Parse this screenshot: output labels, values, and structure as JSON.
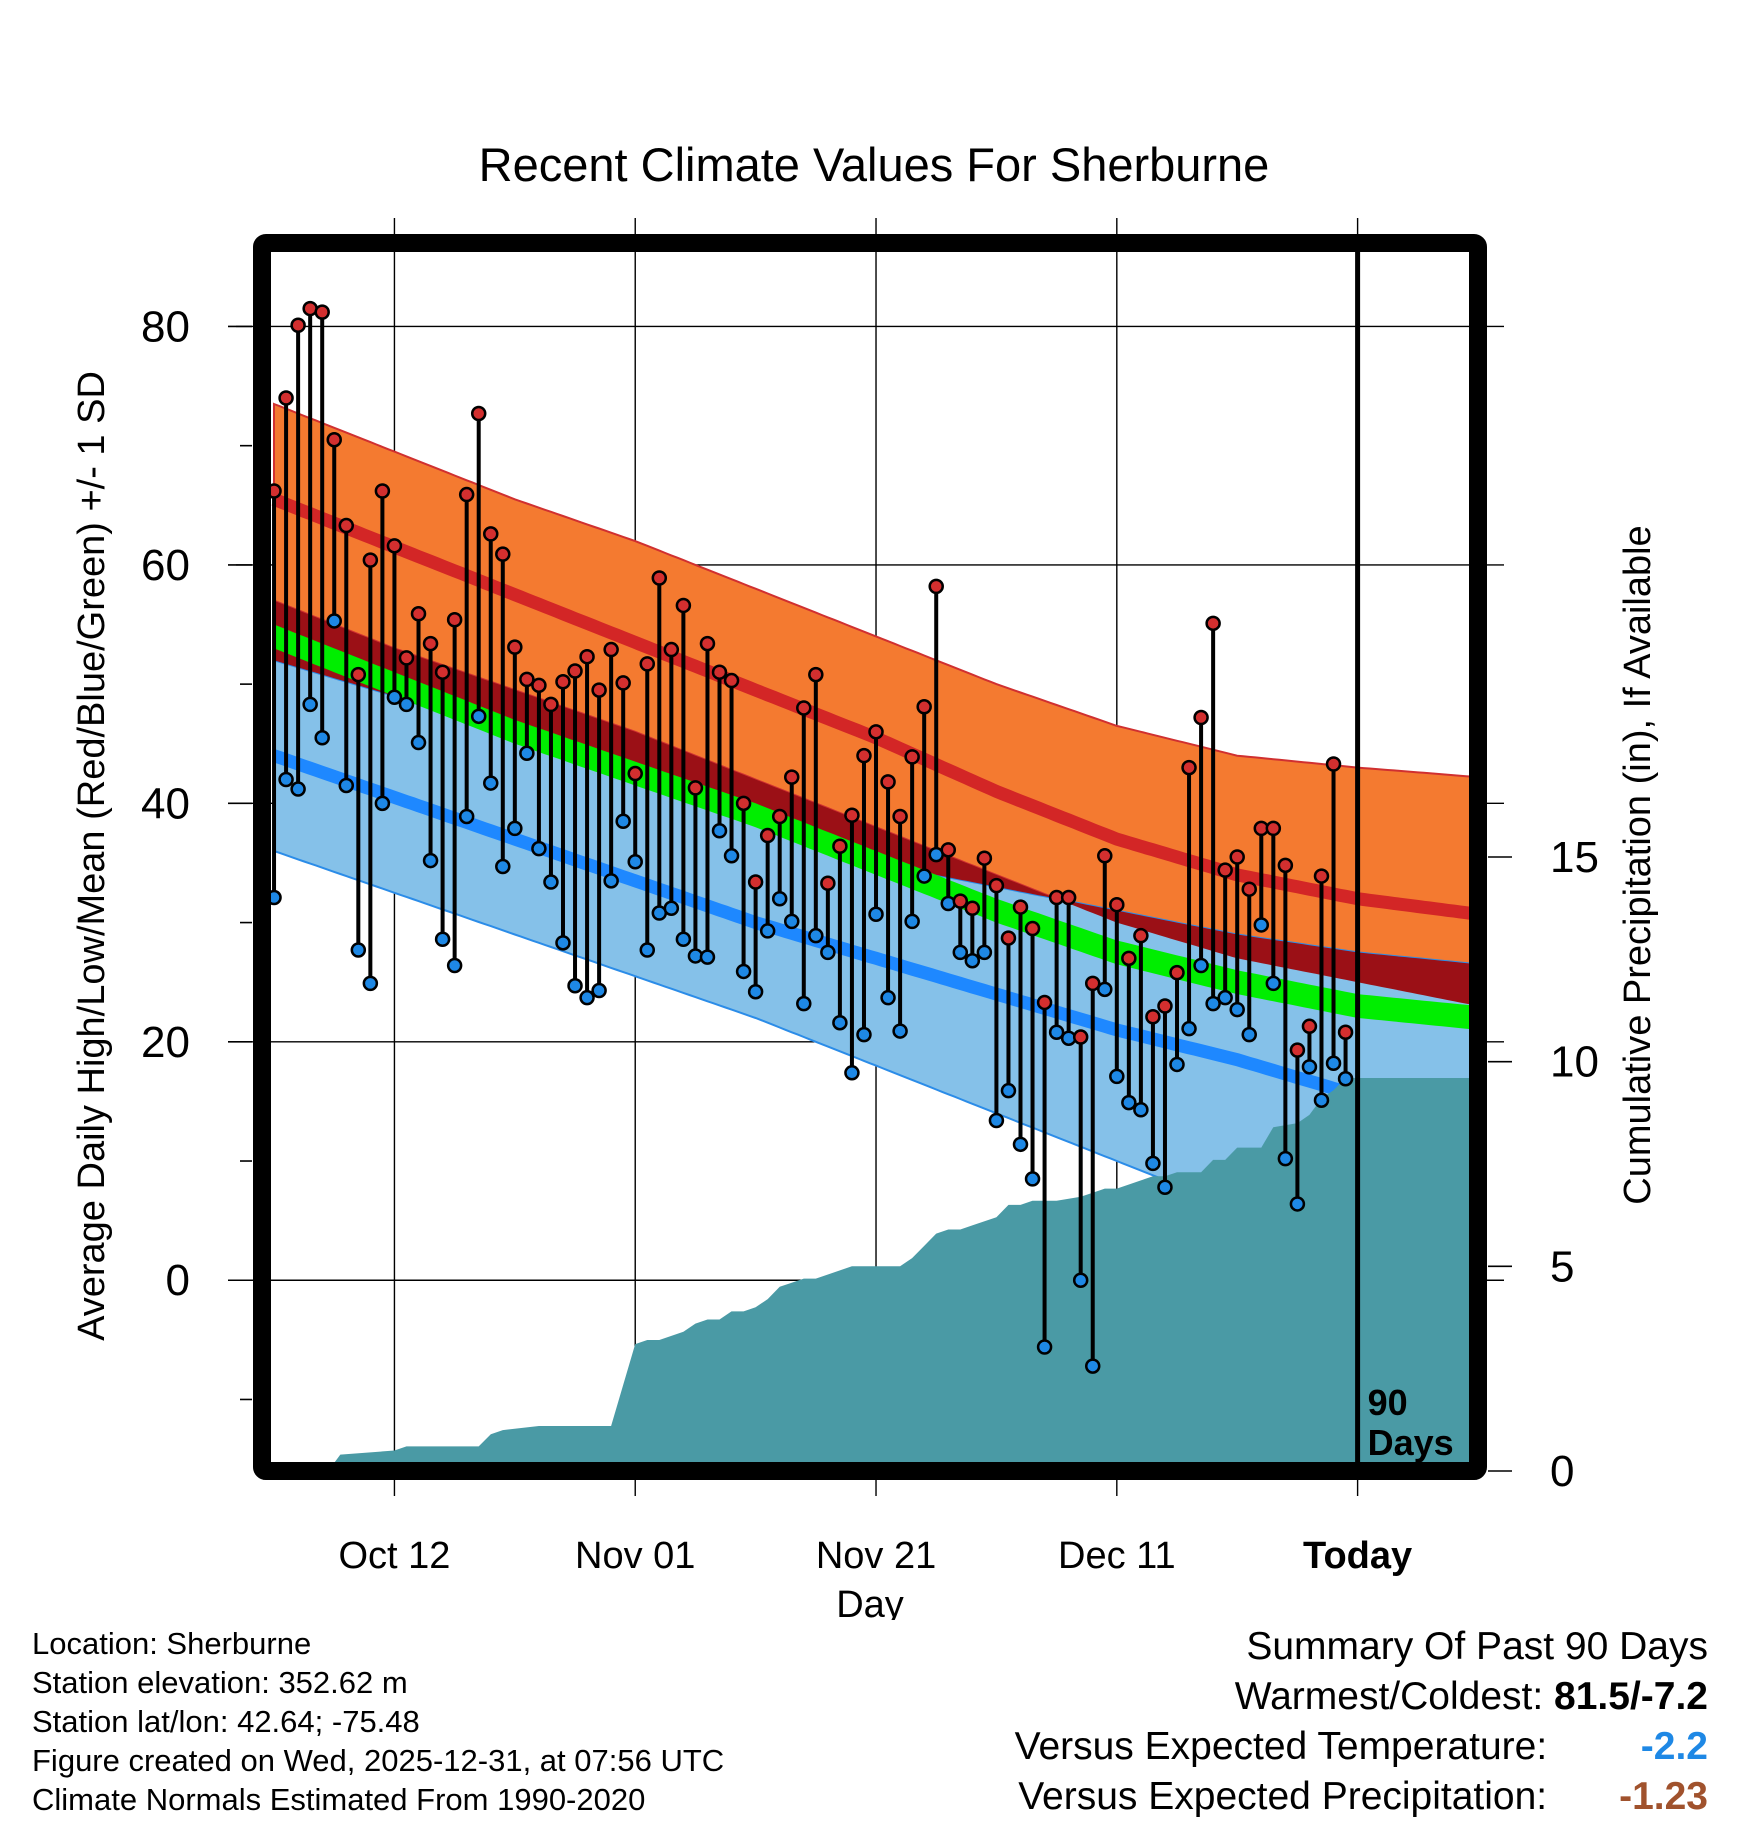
{
  "chart_data": {
    "type": "line",
    "title": "Recent Climate Values For Sherburne",
    "xlabel": "Day",
    "ylabel_left": "Average Daily High/Low/Mean (Red/Blue/Green) +/- 1 SD",
    "ylabel_right": "Cumulative Precipitation (in), If Available",
    "xlim": [
      -11,
      90
    ],
    "ylim_left": [
      -16,
      87
    ],
    "ylim_right": [
      0,
      30
    ],
    "x_ticks": [
      {
        "x": 0,
        "label": "Oct 12"
      },
      {
        "x": 20,
        "label": "Nov 01"
      },
      {
        "x": 40,
        "label": "Nov 21"
      },
      {
        "x": 60,
        "label": "Dec 11"
      },
      {
        "x": 80,
        "label": "Today"
      }
    ],
    "y_ticks_left": [
      0,
      20,
      40,
      60,
      80
    ],
    "y_ticks_right": [
      0,
      5,
      10,
      15
    ],
    "today_x": 80,
    "today_annotation": [
      "90",
      "Days"
    ],
    "normals": {
      "x": [
        -10,
        0,
        10,
        20,
        30,
        40,
        50,
        60,
        70,
        80,
        90
      ],
      "high_upper": [
        73.5,
        69.5,
        65.5,
        62,
        58,
        54,
        50,
        46.5,
        44,
        43,
        42.2
      ],
      "high_mean": [
        65.5,
        61.5,
        57.5,
        53.5,
        49.5,
        45.5,
        41,
        37,
        34,
        32,
        30.7
      ],
      "high_lower": [
        57,
        53,
        49.5,
        46,
        42,
        38,
        34,
        30,
        27,
        25,
        23
      ],
      "mean_upper": [
        55,
        51,
        47,
        43.5,
        40,
        36,
        32,
        28.5,
        26,
        24,
        23
      ],
      "mean_lower": [
        53,
        49,
        45,
        41.5,
        38,
        34,
        30,
        26.5,
        24,
        22,
        21
      ],
      "low_upper": [
        52,
        49,
        45.5,
        42,
        38.5,
        35,
        33,
        31,
        29,
        27.5,
        26.5
      ],
      "low_mean": [
        44,
        40.5,
        37,
        33.5,
        30,
        27,
        24,
        21,
        18.5,
        15.5,
        13.5
      ],
      "low_lower": [
        36,
        32.5,
        29,
        25.5,
        22,
        18,
        14,
        10,
        6,
        3,
        0
      ]
    },
    "series": [
      {
        "name": "High",
        "color": "#d32f2f",
        "values": [
          66.2,
          74,
          80.1,
          81.5,
          81.2,
          70.5,
          63.3,
          50.8,
          60.4,
          66.2,
          61.6,
          52.2,
          55.9,
          53.4,
          51.0,
          55.4,
          65.9,
          72.7,
          62.6,
          60.9,
          53.1,
          50.4,
          49.9,
          48.3,
          50.2,
          51.1,
          52.3,
          49.5,
          52.9,
          50.1,
          42.5,
          51.7,
          58.9,
          52.9,
          56.6,
          41.3,
          53.4,
          51.0,
          50.3,
          40.0,
          33.4,
          37.3,
          38.9,
          42.2,
          48.0,
          50.8,
          33.3,
          36.4,
          39.0,
          44.0,
          46.0,
          41.8,
          38.9,
          43.9,
          48.1,
          58.2,
          36.1,
          31.8,
          31.2,
          35.4,
          33.1,
          28.7,
          31.3,
          29.5,
          23.3,
          32.1,
          32.1,
          20.4,
          24.9,
          35.6,
          31.5,
          27.0,
          28.9,
          22.1,
          23.0,
          25.8,
          43.0,
          47.2,
          55.1,
          34.4,
          35.5,
          32.8,
          37.9,
          37.9,
          34.8,
          19.3,
          21.3,
          33.9,
          43.3,
          20.8
        ]
      },
      {
        "name": "Low",
        "color": "#1e88e5",
        "values": [
          32.1,
          42.0,
          41.2,
          48.3,
          45.5,
          55.3,
          41.5,
          27.7,
          24.9,
          40.0,
          48.9,
          48.3,
          45.1,
          35.2,
          28.6,
          26.4,
          38.9,
          47.3,
          41.7,
          34.7,
          37.9,
          44.2,
          36.2,
          33.4,
          28.3,
          24.7,
          23.7,
          24.3,
          33.5,
          38.5,
          35.1,
          27.7,
          30.8,
          31.2,
          28.6,
          27.2,
          27.1,
          37.7,
          35.6,
          25.9,
          24.2,
          29.3,
          32.0,
          30.1,
          23.2,
          28.9,
          27.5,
          21.6,
          17.4,
          20.6,
          30.7,
          23.7,
          20.9,
          30.1,
          33.9,
          35.7,
          31.6,
          27.5,
          26.8,
          27.5,
          13.4,
          15.9,
          11.4,
          8.5,
          -5.6,
          20.8,
          20.3,
          0.0,
          -7.2,
          24.4,
          17.1,
          14.9,
          14.3,
          9.8,
          7.8,
          18.1,
          21.1,
          26.4,
          23.2,
          23.7,
          22.7,
          20.6,
          29.8,
          24.9,
          10.2,
          6.4,
          17.9,
          15.1,
          18.2,
          16.9
        ]
      },
      {
        "name": "Cumulative Precipitation",
        "color": "#4a9aa5",
        "x": [
          -11,
          -5.5,
          -4.5,
          0,
          1,
          4,
          7,
          8,
          9,
          12,
          15,
          17,
          18,
          20,
          21,
          22,
          24,
          25,
          26,
          27,
          28,
          29,
          30,
          31,
          32,
          33,
          34,
          35,
          36,
          37,
          38,
          40,
          42,
          43,
          44,
          45,
          46,
          47,
          48,
          50,
          51,
          52,
          53,
          54,
          55,
          57,
          58,
          59,
          60,
          61,
          62,
          63,
          64,
          65,
          66,
          67,
          68,
          69,
          70,
          71,
          72,
          73,
          75,
          76,
          77,
          78,
          79,
          80,
          90
        ],
        "values": [
          0,
          0,
          0.4,
          0.5,
          0.6,
          0.6,
          0.6,
          0.9,
          1.0,
          1.1,
          1.1,
          1.1,
          1.1,
          3.1,
          3.2,
          3.2,
          3.4,
          3.6,
          3.7,
          3.7,
          3.9,
          3.9,
          4.0,
          4.2,
          4.5,
          4.6,
          4.7,
          4.7,
          4.8,
          4.9,
          5.0,
          5.0,
          5.0,
          5.2,
          5.5,
          5.8,
          5.9,
          5.9,
          6.0,
          6.2,
          6.5,
          6.5,
          6.6,
          6.6,
          6.6,
          6.7,
          6.8,
          6.9,
          6.9,
          7.0,
          7.1,
          7.2,
          7.2,
          7.3,
          7.3,
          7.3,
          7.6,
          7.6,
          7.9,
          7.9,
          7.9,
          8.4,
          8.5,
          8.7,
          9.1,
          9.3,
          9.6,
          9.6,
          9.6
        ]
      }
    ]
  },
  "footer": {
    "location": "Location: Sherburne",
    "elevation": "Station elevation: 352.62 m",
    "latlon": "Station lat/lon: 42.64; -75.48",
    "created": "Figure created on Wed, 2025-12-31, at 07:56 UTC",
    "normals": "Climate Normals Estimated From 1990-2020"
  },
  "summary": {
    "heading": "Summary Of Past 90 Days",
    "warmest_label": "Warmest/Coldest:",
    "warmest_value": "81.5/-7.2",
    "temp_label": "Versus Expected Temperature:",
    "temp_value": "-2.2",
    "temp_color": "#1e88e5",
    "precip_label": "Versus Expected Precipitation:",
    "precip_value": "-1.23",
    "precip_color": "#a0522d"
  }
}
